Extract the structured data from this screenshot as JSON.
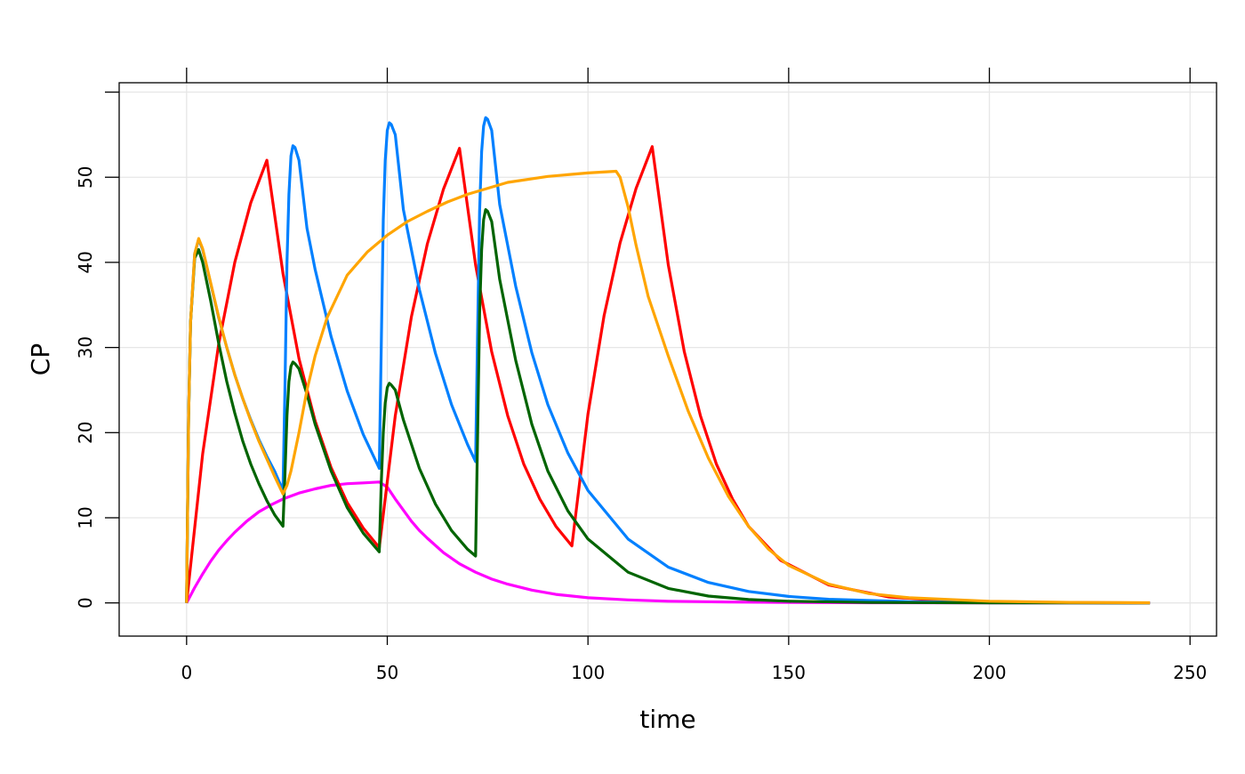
{
  "chart_data": {
    "type": "line",
    "title": "",
    "xlabel": "time",
    "ylabel": "CP",
    "xlim": [
      -16.8,
      256.6
    ],
    "ylim": [
      -3.9,
      61.1
    ],
    "xticks": [
      0,
      50,
      100,
      150,
      200,
      250
    ],
    "xtick_labels": [
      "0",
      "50",
      "100",
      "150",
      "200",
      "250"
    ],
    "yticks": [
      0,
      10,
      20,
      30,
      40,
      50,
      60
    ],
    "ytick_labels": [
      "0",
      "10",
      "20",
      "30",
      "40",
      "50",
      ""
    ],
    "grid": true,
    "legend": "none",
    "series": [
      {
        "name": "magenta",
        "color": "#ff00ff",
        "x": [
          0,
          2,
          4,
          6,
          8,
          10,
          12,
          15,
          18,
          21,
          24,
          28,
          32,
          36,
          40,
          44,
          48,
          50,
          52,
          54,
          56,
          58,
          60,
          64,
          68,
          72,
          76,
          80,
          86,
          92,
          100,
          110,
          120,
          135,
          150,
          170,
          200,
          240
        ],
        "y": [
          0,
          1.8,
          3.4,
          4.9,
          6.2,
          7.3,
          8.3,
          9.6,
          10.7,
          11.5,
          12.2,
          12.9,
          13.4,
          13.8,
          14.0,
          14.1,
          14.2,
          13.6,
          12.2,
          10.9,
          9.6,
          8.5,
          7.6,
          5.9,
          4.6,
          3.6,
          2.8,
          2.2,
          1.5,
          1.0,
          0.6,
          0.35,
          0.2,
          0.1,
          0.05,
          0.02,
          0.01,
          0
        ]
      },
      {
        "name": "red",
        "color": "#ff0000",
        "x": [
          0,
          4,
          8,
          12,
          16,
          20,
          24,
          28,
          32,
          36,
          40,
          44,
          48,
          52,
          56,
          60,
          64,
          68,
          72,
          76,
          80,
          84,
          88,
          92,
          96,
          100,
          104,
          108,
          112,
          116,
          120,
          124,
          128,
          132,
          136,
          140,
          148,
          160,
          175,
          190,
          210,
          240
        ],
        "y": [
          0,
          17.5,
          30.4,
          40,
          47,
          52,
          38.7,
          28.7,
          21.4,
          15.9,
          11.8,
          8.8,
          6.5,
          22,
          33.6,
          42.2,
          48.6,
          53.4,
          39.7,
          29.5,
          22,
          16.3,
          12.2,
          9,
          6.7,
          22.2,
          33.7,
          42.3,
          48.7,
          53.6,
          39.7,
          29.5,
          22,
          16.3,
          12.2,
          9,
          5,
          2.1,
          0.7,
          0.23,
          0.05,
          0
        ]
      },
      {
        "name": "blue",
        "color": "#0080ff",
        "x": [
          0,
          0.5,
          1,
          2,
          3,
          4,
          6,
          8,
          10,
          12,
          14,
          16,
          18,
          20,
          22,
          24,
          24.5,
          25,
          25.5,
          26,
          26.5,
          27,
          28,
          30,
          32,
          36,
          40,
          44,
          48,
          48.5,
          49,
          49.5,
          50,
          50.5,
          51,
          52,
          54,
          58,
          62,
          66,
          70,
          72,
          72.5,
          73,
          73.5,
          74,
          74.5,
          75,
          76,
          78,
          82,
          86,
          90,
          95,
          100,
          110,
          120,
          130,
          140,
          150,
          160,
          180,
          200,
          240
        ],
        "y": [
          0,
          22,
          33,
          41,
          42.7,
          41.5,
          37.5,
          33.5,
          30,
          26.8,
          24,
          21.5,
          19.2,
          17.2,
          15.4,
          13.2,
          25,
          40,
          48,
          52.5,
          53.7,
          53.5,
          52,
          44,
          39.2,
          31.3,
          24.9,
          19.8,
          15.8,
          30,
          45,
          52,
          55.5,
          56.4,
          56.2,
          55,
          46.2,
          36.8,
          29.3,
          23.3,
          18.6,
          16.6,
          32,
          46,
          53,
          56,
          57,
          56.8,
          55.5,
          46.8,
          37.2,
          29.4,
          23.3,
          17.6,
          13.2,
          7.5,
          4.2,
          2.4,
          1.35,
          0.76,
          0.43,
          0.14,
          0.04,
          0
        ]
      },
      {
        "name": "green",
        "color": "#006400",
        "x": [
          0,
          0.5,
          1,
          2,
          3,
          4,
          6,
          8,
          10,
          12,
          14,
          16,
          18,
          20,
          22,
          24,
          24.5,
          25,
          25.5,
          26,
          26.5,
          27,
          28,
          30,
          32,
          36,
          40,
          44,
          48,
          48.5,
          49,
          49.5,
          50,
          50.5,
          51,
          52,
          54,
          58,
          62,
          66,
          70,
          72,
          72.5,
          73,
          73.5,
          74,
          74.5,
          75,
          76,
          78,
          82,
          86,
          90,
          95,
          100,
          110,
          120,
          130,
          140,
          150,
          170,
          200,
          240
        ],
        "y": [
          0,
          22,
          33,
          40.5,
          41.5,
          40,
          35.5,
          30.5,
          26,
          22.3,
          19,
          16.3,
          14,
          12,
          10.3,
          9,
          15,
          22,
          26,
          27.8,
          28.3,
          28.1,
          27.5,
          24.5,
          21,
          15.5,
          11.2,
          8.2,
          6,
          14,
          20,
          23.5,
          25.3,
          25.8,
          25.6,
          25,
          21.5,
          15.8,
          11.6,
          8.5,
          6.3,
          5.5,
          20,
          34,
          41.5,
          45,
          46.2,
          46,
          44.8,
          38,
          28.5,
          21,
          15.5,
          10.8,
          7.5,
          3.6,
          1.7,
          0.8,
          0.4,
          0.2,
          0.05,
          0.01,
          0
        ]
      },
      {
        "name": "orange",
        "color": "#ffa500",
        "x": [
          0,
          0.5,
          1,
          2,
          3,
          4,
          6,
          8,
          10,
          12,
          14,
          16,
          18,
          20,
          22,
          24,
          25,
          26,
          28,
          30,
          32,
          35,
          40,
          45,
          50,
          55,
          60,
          65,
          70,
          80,
          90,
          100,
          107,
          108,
          110,
          112,
          115,
          120,
          125,
          130,
          135,
          140,
          145,
          150,
          160,
          170,
          180,
          200,
          220,
          240
        ],
        "y": [
          0,
          22,
          33,
          41,
          42.8,
          41.6,
          37.6,
          33.6,
          30,
          26.8,
          24,
          21.4,
          19,
          16.9,
          14.8,
          12.8,
          13.8,
          15.5,
          20,
          25,
          29,
          33.5,
          38.5,
          41.2,
          43.2,
          44.8,
          46,
          47.1,
          48,
          49.4,
          50.1,
          50.5,
          50.7,
          50,
          46.5,
          42,
          36,
          29,
          22.5,
          17,
          12.5,
          9,
          6.3,
          4.4,
          2.2,
          1.1,
          0.6,
          0.2,
          0.06,
          0.02
        ]
      }
    ]
  }
}
